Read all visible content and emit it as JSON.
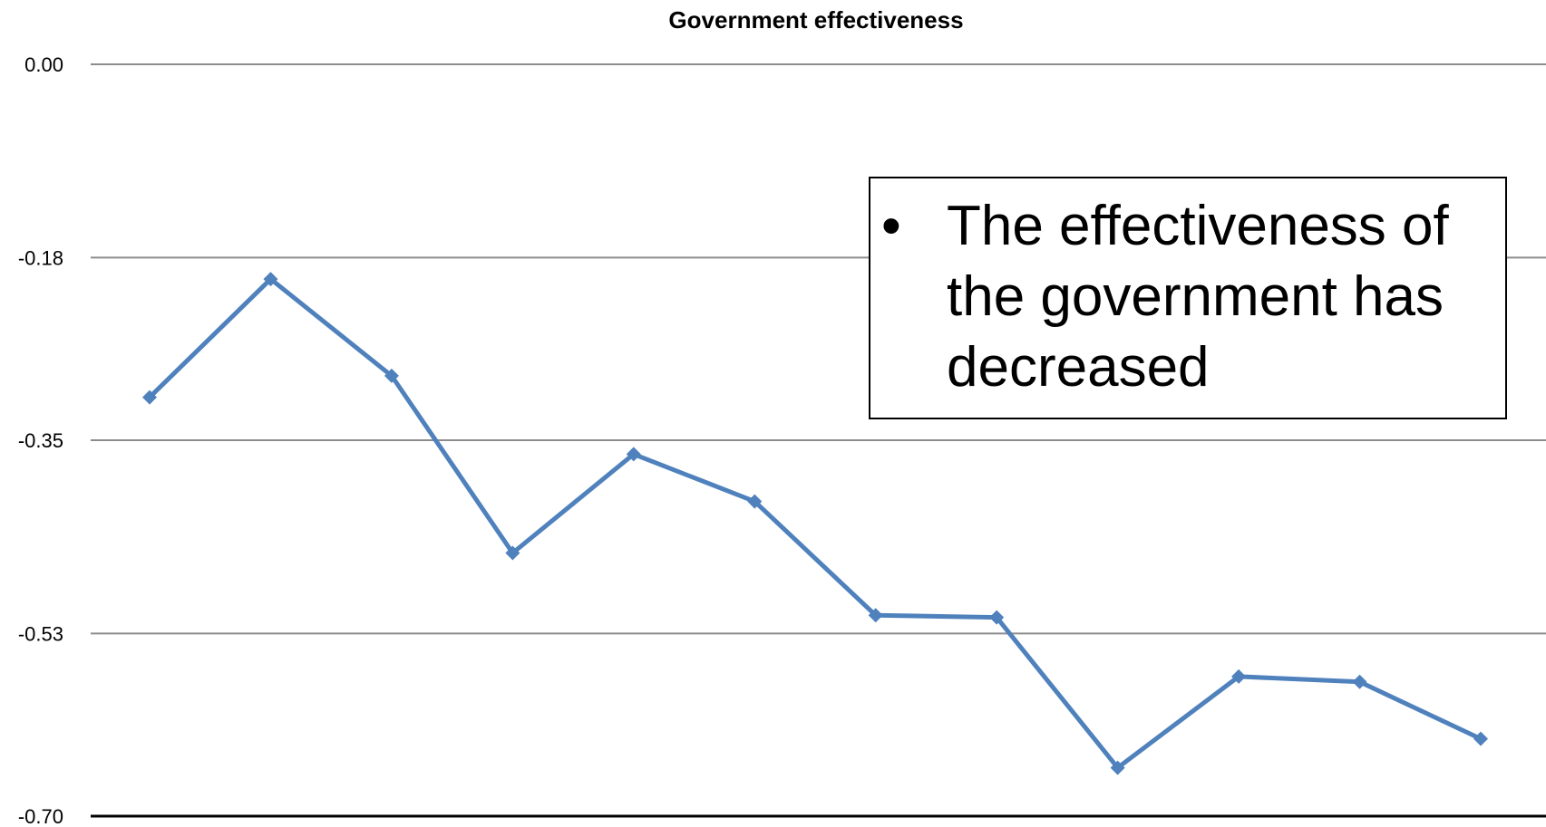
{
  "chart_data": {
    "type": "line",
    "title": "Government effectiveness",
    "xlabel": "",
    "ylabel": "",
    "y_ticks": [
      "0.00",
      "-0.18",
      "-0.35",
      "-0.53",
      "-0.70"
    ],
    "ylim": [
      -0.7,
      0.0
    ],
    "grid": true,
    "x": [
      1,
      2,
      3,
      4,
      5,
      6,
      7,
      8,
      9,
      10,
      11,
      12
    ],
    "series": [
      {
        "values": [
          -0.31,
          -0.2,
          -0.29,
          -0.455,
          -0.363,
          -0.407,
          -0.513,
          -0.515,
          -0.655,
          -0.57,
          -0.575,
          -0.628
        ],
        "color": "#4F81BD",
        "marker": "diamond"
      }
    ],
    "annotation": {
      "bullet": "•",
      "text": "The effectiveness of the government has decreased"
    }
  }
}
